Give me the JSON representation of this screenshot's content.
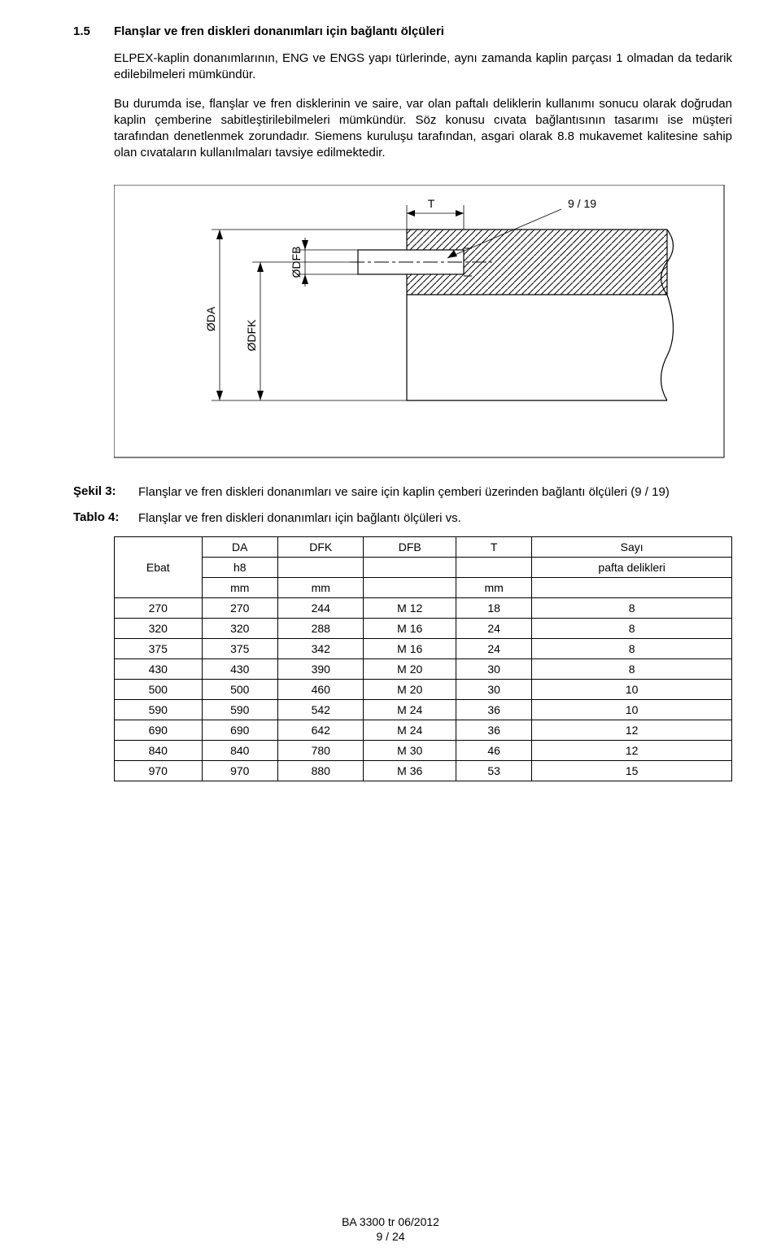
{
  "section": {
    "number": "1.5",
    "title": "Flanşlar ve fren diskleri donanımları için bağlantı ölçüleri"
  },
  "paragraphs": {
    "p1": "ELPEX-kaplin donanımlarının, ENG ve ENGS yapı türlerinde, aynı zamanda kaplin parçası 1 olmadan da tedarik edilebilmeleri mümkündür.",
    "p2": "Bu durumda ise, flanşlar ve fren disklerinin ve saire, var olan paftalı deliklerin kullanımı sonucu olarak doğrudan kaplin çemberine sabitleştirilebilmeleri mümkündür. Söz konusu cıvata bağlantısının tasarımı ise müşteri tarafından denetlenmek zorundadır. Siemens kuruluşu tarafından, asgari olarak 8.8 mukavemet kalitesine sahip olan cıvataların kullanılmaları tavsiye edilmektedir."
  },
  "figure": {
    "labels": {
      "T": "T",
      "ratio": "9 / 19",
      "DA": "ØDA",
      "DFK": "ØDFK",
      "DFB": "ØDFB"
    },
    "caption_label": "Şekil 3:",
    "caption_text": "Flanşlar ve fren diskleri donanımları ve saire için kaplin çemberi üzerinden bağlantı ölçüleri (9 / 19)"
  },
  "table": {
    "caption_label": "Tablo 4:",
    "caption_text": "Flanşlar ve fren diskleri donanımları için bağlantı ölçüleri vs.",
    "headers": {
      "c1": "Ebat",
      "c2_l1": "DA",
      "c2_l2": "h8",
      "c2_l3": "mm",
      "c3_l1": "DFK",
      "c3_l3": "mm",
      "c4_l1": "DFB",
      "c5_l1": "T",
      "c5_l3": "mm",
      "c6_l1": "Sayı",
      "c6_l2": "pafta delikleri"
    },
    "rows": [
      {
        "c1": "270",
        "c2": "270",
        "c3": "244",
        "c4": "M 12",
        "c5": "18",
        "c6": "8"
      },
      {
        "c1": "320",
        "c2": "320",
        "c3": "288",
        "c4": "M 16",
        "c5": "24",
        "c6": "8"
      },
      {
        "c1": "375",
        "c2": "375",
        "c3": "342",
        "c4": "M 16",
        "c5": "24",
        "c6": "8"
      },
      {
        "c1": "430",
        "c2": "430",
        "c3": "390",
        "c4": "M 20",
        "c5": "30",
        "c6": "8"
      },
      {
        "c1": "500",
        "c2": "500",
        "c3": "460",
        "c4": "M 20",
        "c5": "30",
        "c6": "10"
      },
      {
        "c1": "590",
        "c2": "590",
        "c3": "542",
        "c4": "M 24",
        "c5": "36",
        "c6": "10"
      },
      {
        "c1": "690",
        "c2": "690",
        "c3": "642",
        "c4": "M 24",
        "c5": "36",
        "c6": "12"
      },
      {
        "c1": "840",
        "c2": "840",
        "c3": "780",
        "c4": "M 30",
        "c5": "46",
        "c6": "12"
      },
      {
        "c1": "970",
        "c2": "970",
        "c3": "880",
        "c4": "M 36",
        "c5": "53",
        "c6": "15"
      }
    ]
  },
  "footer": {
    "l1": "BA 3300 tr 06/2012",
    "l2": "9 / 24"
  },
  "svg": {
    "stroke": "#000",
    "fill": "#fff",
    "hatch": "#000",
    "outer_w": 780,
    "outer_h": 340
  }
}
